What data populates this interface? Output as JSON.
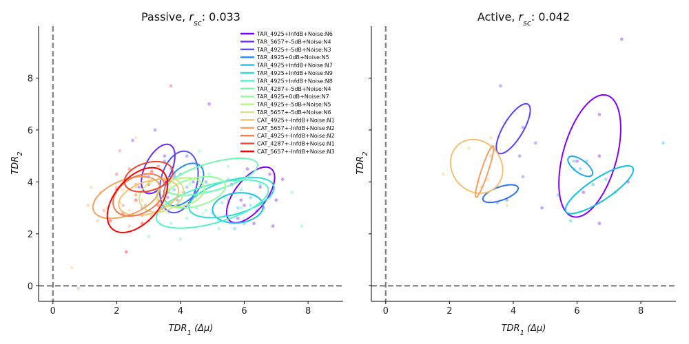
{
  "chart_data": [
    {
      "type": "scatter",
      "title_main": "Passive, ",
      "title_var": "r",
      "title_sub": "sc",
      "title_value": ": 0.033",
      "xlabel_main": "TDR",
      "xlabel_sub": "1",
      "xlabel_unit": " (Δμ)",
      "ylabel_main": "TDR",
      "ylabel_sub": "2",
      "xlim": [
        -0.45,
        9.1
      ],
      "ylim": [
        -0.6,
        10.0
      ],
      "xticks": [
        0,
        2,
        4,
        6,
        8
      ],
      "yticks": [
        0,
        2,
        4,
        6,
        8
      ],
      "legend_position": "upper-right",
      "series": [
        {
          "name": "TAR_4925+InfdB+Noise:N6",
          "color": "#8000ff",
          "ellipse": {
            "cx": 6.2,
            "cy": 3.5,
            "w": 2.4,
            "h": 1.05,
            "angle": 60
          },
          "points": [
            [
              6.0,
              3.1
            ],
            [
              6.5,
              3.8
            ],
            [
              5.8,
              2.6
            ],
            [
              6.8,
              4.3
            ],
            [
              7.0,
              3.3
            ],
            [
              6.3,
              2.4
            ],
            [
              5.6,
              3.9
            ],
            [
              4.9,
              7.0
            ],
            [
              6.6,
              3.0
            ],
            [
              6.1,
              4.5
            ],
            [
              7.2,
              4.1
            ],
            [
              6.9,
              2.3
            ],
            [
              5.9,
              3.3
            ]
          ]
        },
        {
          "name": "TAR_5657+-5dB+Noise:N4",
          "color": "#6a28ff",
          "ellipse": {
            "cx": 3.3,
            "cy": 4.5,
            "w": 2.0,
            "h": 0.85,
            "angle": 70
          },
          "points": [
            [
              3.0,
              4.2
            ],
            [
              3.5,
              5.0
            ],
            [
              2.7,
              3.8
            ],
            [
              3.2,
              6.0
            ],
            [
              3.8,
              4.3
            ],
            [
              2.5,
              5.6
            ],
            [
              3.9,
              3.3
            ]
          ]
        },
        {
          "name": "TAR_4925+-5dB+Noise:N3",
          "color": "#4f4ffc",
          "ellipse": {
            "cx": 3.95,
            "cy": 4.0,
            "w": 2.4,
            "h": 1.15,
            "angle": 80
          },
          "points": [
            [
              3.8,
              4.2
            ],
            [
              4.1,
              3.6
            ],
            [
              3.5,
              4.8
            ],
            [
              4.4,
              4.0
            ],
            [
              3.9,
              3.1
            ],
            [
              4.2,
              5.0
            ],
            [
              3.6,
              3.4
            ],
            [
              2.8,
              3.0
            ]
          ]
        },
        {
          "name": "TAR_4925+0dB+Noise:N5",
          "color": "#2a8bf0",
          "ellipse": {
            "cx": 4.1,
            "cy": 3.9,
            "w": 1.8,
            "h": 1.0,
            "angle": 60
          },
          "points": [
            [
              4.2,
              3.8
            ],
            [
              4.0,
              4.3
            ],
            [
              4.5,
              3.5
            ],
            [
              3.7,
              4.5
            ],
            [
              4.8,
              4.0
            ],
            [
              3.8,
              3.7
            ]
          ]
        },
        {
          "name": "TAR_4925+InfdB+Noise:N7",
          "color": "#1ec0e6",
          "ellipse": {
            "cx": 5.8,
            "cy": 3.0,
            "w": 1.6,
            "h": 1.15,
            "angle": 10
          },
          "points": [
            [
              5.8,
              3.0
            ],
            [
              6.2,
              3.4
            ],
            [
              5.4,
              2.7
            ],
            [
              6.0,
              2.4
            ],
            [
              5.5,
              3.3
            ],
            [
              6.4,
              2.9
            ],
            [
              5.7,
              2.2
            ]
          ]
        },
        {
          "name": "TAR_4925+InfdB+Noise:N9",
          "color": "#2fdcd5",
          "ellipse": {
            "cx": 5.6,
            "cy": 3.4,
            "w": 2.8,
            "h": 1.3,
            "angle": 20
          },
          "points": [
            [
              5.3,
              3.2
            ],
            [
              5.9,
              3.7
            ],
            [
              5.0,
              2.8
            ],
            [
              6.2,
              3.1
            ],
            [
              5.5,
              4.1
            ],
            [
              4.8,
              3.6
            ],
            [
              6.5,
              3.9
            ],
            [
              5.2,
              2.5
            ],
            [
              6.8,
              3.4
            ],
            [
              4.5,
              3.0
            ]
          ]
        },
        {
          "name": "TAR_4925+InfdB+Noise:N8",
          "color": "#52f2c4",
          "ellipse": {
            "cx": 5.0,
            "cy": 3.15,
            "w": 3.7,
            "h": 1.45,
            "angle": 20
          },
          "points": [
            [
              4.8,
              2.9
            ],
            [
              5.4,
              3.4
            ],
            [
              4.2,
              2.6
            ],
            [
              5.9,
              3.0
            ],
            [
              4.5,
              3.6
            ],
            [
              6.3,
              3.5
            ],
            [
              3.7,
              2.4
            ],
            [
              5.2,
              2.2
            ],
            [
              6.6,
              2.9
            ],
            [
              4.0,
              1.8
            ],
            [
              5.7,
              4.0
            ],
            [
              7.5,
              3.6
            ],
            [
              7.8,
              2.3
            ],
            [
              3.0,
              1.9
            ]
          ]
        },
        {
          "name": "TAR_4287+-5dB+Noise:N4",
          "color": "#6ffbb0",
          "ellipse": {
            "cx": 5.0,
            "cy": 4.2,
            "w": 3.0,
            "h": 1.05,
            "angle": 20
          },
          "points": [
            [
              4.9,
              4.3
            ],
            [
              5.5,
              4.6
            ],
            [
              4.3,
              3.9
            ],
            [
              5.8,
              4.9
            ],
            [
              4.6,
              5.2
            ],
            [
              5.2,
              3.7
            ],
            [
              6.0,
              4.1
            ],
            [
              4.1,
              4.6
            ]
          ]
        },
        {
          "name": "TAR_4925+0dB+Noise:N7",
          "color": "#93fd9c",
          "ellipse": {
            "cx": 4.45,
            "cy": 3.6,
            "w": 2.0,
            "h": 1.05,
            "angle": 20
          },
          "points": [
            [
              4.5,
              3.5
            ],
            [
              4.9,
              3.9
            ],
            [
              4.0,
              3.3
            ],
            [
              5.1,
              3.2
            ],
            [
              4.3,
              4.1
            ],
            [
              3.6,
              3.7
            ],
            [
              4.7,
              2.8
            ]
          ]
        },
        {
          "name": "TAR_4925+-5dB+Noise:N5",
          "color": "#b8f485",
          "ellipse": {
            "cx": 4.0,
            "cy": 3.6,
            "w": 1.55,
            "h": 1.05,
            "angle": 20
          },
          "points": [
            [
              4.0,
              3.6
            ],
            [
              4.3,
              4.0
            ],
            [
              3.7,
              3.2
            ],
            [
              4.5,
              3.4
            ],
            [
              3.8,
              4.3
            ],
            [
              3.5,
              2.9
            ]
          ]
        },
        {
          "name": "TAR_5657+-5dB+Noise:N6",
          "color": "#d4e18a",
          "ellipse": {
            "cx": 3.4,
            "cy": 3.5,
            "w": 1.5,
            "h": 1.2,
            "angle": 40
          },
          "points": [
            [
              3.3,
              3.4
            ],
            [
              3.7,
              3.8
            ],
            [
              2.9,
              3.1
            ],
            [
              3.9,
              3.3
            ],
            [
              3.1,
              4.0
            ],
            [
              2.6,
              3.5
            ],
            [
              3.6,
              2.8
            ]
          ]
        },
        {
          "name": "CAT_4925+-InfdB+Noise:N1",
          "color": "#f4c26e",
          "ellipse": {
            "cx": 3.0,
            "cy": 3.4,
            "w": 2.0,
            "h": 1.2,
            "angle": 25
          },
          "points": [
            [
              2.8,
              3.3
            ],
            [
              3.3,
              3.7
            ],
            [
              2.4,
              2.9
            ],
            [
              3.6,
              3.2
            ],
            [
              2.2,
              3.7
            ],
            [
              3.0,
              2.5
            ],
            [
              1.2,
              3.8
            ],
            [
              0.6,
              0.7
            ],
            [
              2.6,
              5.7
            ],
            [
              1.7,
              3.0
            ]
          ]
        },
        {
          "name": "CAT_5657+-InfdB+Noise:N2",
          "color": "#f4a060",
          "ellipse": {
            "cx": 2.3,
            "cy": 3.4,
            "w": 2.3,
            "h": 1.3,
            "angle": 30
          },
          "points": [
            [
              2.1,
              3.2
            ],
            [
              2.6,
              3.8
            ],
            [
              1.7,
              2.8
            ],
            [
              2.9,
              3.1
            ],
            [
              1.5,
              3.6
            ],
            [
              2.4,
              2.3
            ],
            [
              1.1,
              3.1
            ],
            [
              0.8,
              -0.1
            ],
            [
              1.4,
              2.5
            ],
            [
              3.1,
              2.7
            ]
          ]
        },
        {
          "name": "CAT_4925+-InfdB+Noise:N2",
          "color": "#f57a4d",
          "ellipse": {
            "cx": 2.7,
            "cy": 3.5,
            "w": 1.9,
            "h": 1.3,
            "angle": 45
          },
          "points": [
            [
              2.6,
              3.5
            ],
            [
              3.0,
              4.0
            ],
            [
              2.2,
              3.1
            ],
            [
              3.3,
              3.3
            ],
            [
              2.0,
              3.8
            ],
            [
              2.8,
              2.7
            ],
            [
              1.6,
              2.9
            ],
            [
              2.1,
              5.2
            ]
          ]
        },
        {
          "name": "CAT_4287+-InfdB+Noise:N1",
          "color": "#ef4530",
          "ellipse": {
            "cx": 3.0,
            "cy": 4.2,
            "w": 1.6,
            "h": 1.05,
            "angle": 25
          },
          "points": [
            [
              2.9,
              4.2
            ],
            [
              3.3,
              4.6
            ],
            [
              2.6,
              3.9
            ],
            [
              3.5,
              4.1
            ],
            [
              2.4,
              4.5
            ],
            [
              3.0,
              3.6
            ],
            [
              3.7,
              7.7
            ],
            [
              2.0,
              4.3
            ]
          ]
        },
        {
          "name": "CAT_5657+-InfdB+Noise:N3",
          "color": "#ff0000",
          "ellipse": {
            "cx": 2.65,
            "cy": 3.3,
            "w": 2.75,
            "h": 1.5,
            "angle": 60
          },
          "points": [
            [
              2.6,
              3.3
            ],
            [
              3.0,
              3.9
            ],
            [
              2.2,
              2.8
            ],
            [
              3.3,
              3.1
            ],
            [
              2.0,
              3.7
            ],
            [
              2.8,
              2.4
            ],
            [
              1.8,
              2.5
            ],
            [
              3.6,
              3.6
            ],
            [
              2.3,
              1.3
            ],
            [
              3.1,
              4.4
            ]
          ]
        }
      ]
    },
    {
      "type": "scatter",
      "title_main": "Active, ",
      "title_var": "r",
      "title_sub": "sc",
      "title_value": ": 0.042",
      "xlabel_main": "TDR",
      "xlabel_sub": "1",
      "xlabel_unit": " (Δμ)",
      "ylabel_main": "TDR",
      "ylabel_sub": "2",
      "xlim": [
        -0.45,
        9.1
      ],
      "ylim": [
        -0.6,
        10.0
      ],
      "xticks": [
        0,
        2,
        4,
        6,
        8
      ],
      "yticks": [
        0,
        2,
        4,
        6,
        8
      ],
      "series": [
        {
          "color": "#8000ff",
          "ellipse": {
            "cx": 6.4,
            "cy": 5.0,
            "w": 4.8,
            "h": 1.7,
            "angle": 78
          },
          "points": [
            [
              6.7,
              6.6
            ],
            [
              7.4,
              9.5
            ],
            [
              6.7,
              5.0
            ],
            [
              7.6,
              4.0
            ],
            [
              6.2,
              3.6
            ],
            [
              6.7,
              2.4
            ],
            [
              4.9,
              3.0
            ],
            [
              6.0,
              4.8
            ]
          ]
        },
        {
          "color": "#5a3cfe",
          "ellipse": {
            "cx": 4.0,
            "cy": 6.05,
            "w": 2.1,
            "h": 0.65,
            "angle": 65
          },
          "points": [
            [
              3.6,
              7.7
            ],
            [
              4.3,
              6.1
            ],
            [
              4.2,
              5.0
            ],
            [
              4.7,
              5.5
            ]
          ]
        },
        {
          "color": "#2f6ef5",
          "ellipse": {
            "cx": 3.6,
            "cy": 3.55,
            "w": 1.2,
            "h": 0.5,
            "angle": 25
          },
          "points": [
            [
              3.5,
              3.2
            ],
            [
              4.3,
              4.2
            ],
            [
              3.8,
              3.3
            ]
          ]
        },
        {
          "color": "#1ca7ec",
          "ellipse": {
            "cx": 6.1,
            "cy": 4.6,
            "w": 1.0,
            "h": 0.45,
            "angle": -45
          },
          "points": [
            [
              5.9,
              4.8
            ],
            [
              6.1,
              4.5
            ],
            [
              6.3,
              4.8
            ],
            [
              6.5,
              3.9
            ]
          ]
        },
        {
          "color": "#10bfe3",
          "ellipse": {
            "cx": 6.7,
            "cy": 3.7,
            "w": 2.7,
            "h": 0.8,
            "angle": 40
          },
          "points": [
            [
              5.9,
              4.5
            ],
            [
              6.9,
              4.1
            ],
            [
              5.4,
              3.5
            ],
            [
              5.8,
              2.5
            ],
            [
              7.2,
              3.6
            ],
            [
              8.7,
              5.5
            ]
          ]
        },
        {
          "color": "#f4c26e",
          "ellipse": {
            "cx": 2.85,
            "cy": 4.6,
            "w": 1.6,
            "h": 2.1,
            "angle": 15
          },
          "points": [
            [
              2.6,
              5.3
            ],
            [
              3.3,
              5.7
            ],
            [
              1.8,
              4.3
            ],
            [
              3.8,
              3.1
            ],
            [
              3.2,
              4.1
            ]
          ]
        },
        {
          "color": "#f4a060",
          "ellipse": {
            "cx": 3.1,
            "cy": 4.4,
            "w": 2.05,
            "h": 0.22,
            "angle": 75
          },
          "points": [
            [
              3.0,
              3.8
            ],
            [
              3.3,
              5.0
            ],
            [
              2.9,
              4.0
            ]
          ]
        }
      ]
    }
  ]
}
